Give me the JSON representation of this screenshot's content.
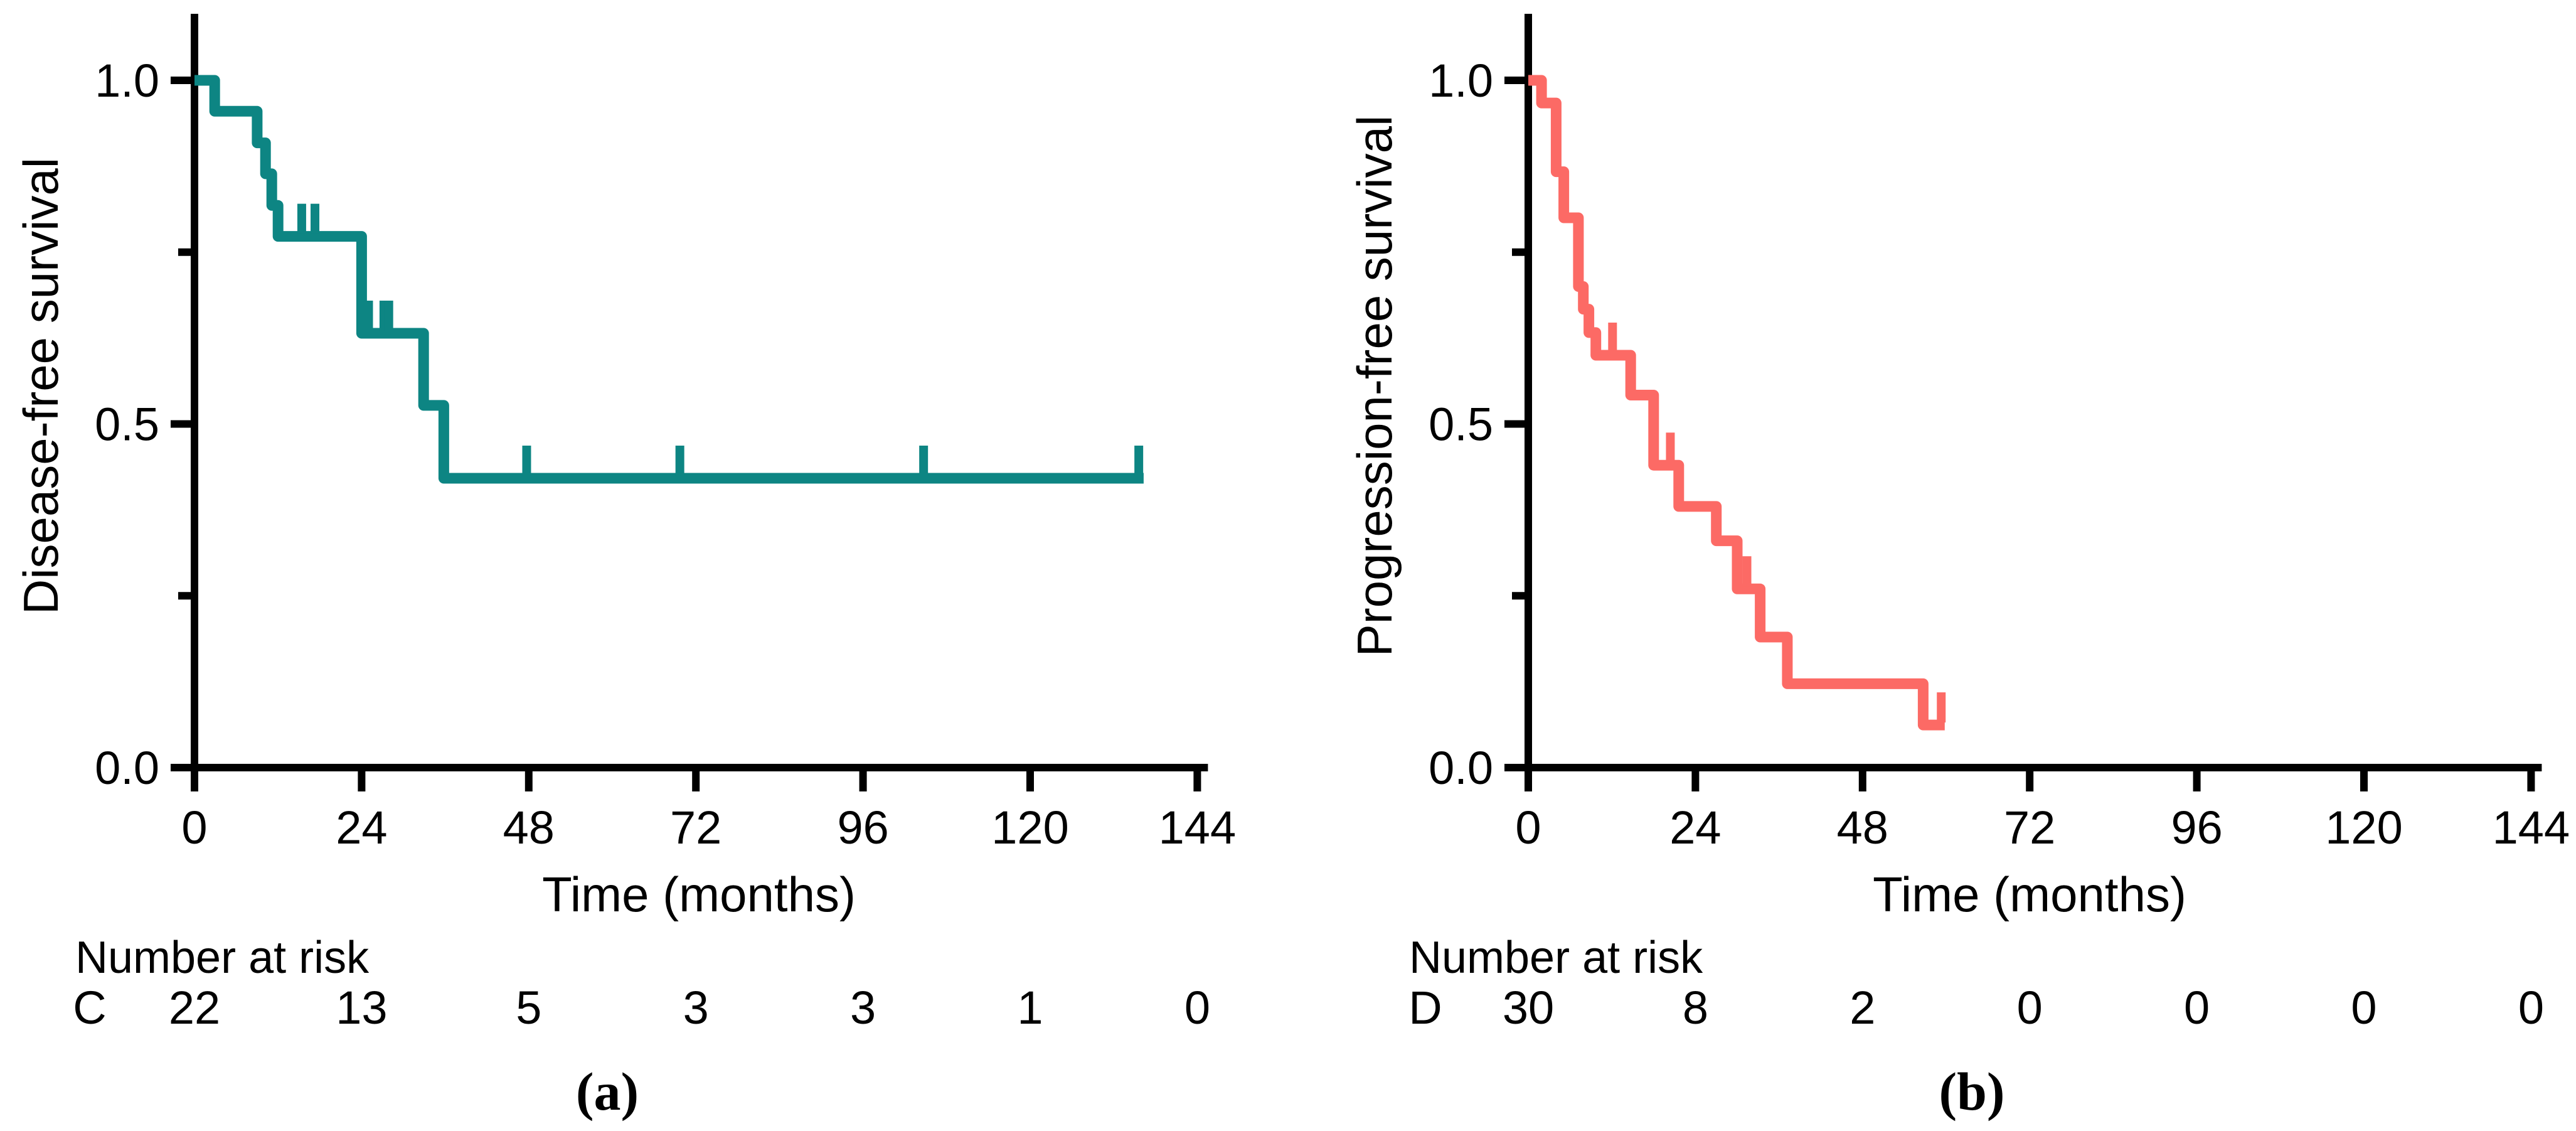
{
  "figure": {
    "background": "#ffffff",
    "text_color": "#000000",
    "axis_color": "#000000"
  },
  "chart_data": [
    {
      "type": "line",
      "subtype": "kaplan-meier-step",
      "panel_id": "a",
      "caption": "(a)",
      "ylabel": "Disease-free survival",
      "xlabel": "Time (months)",
      "color": "#0d8583",
      "xlim": [
        0,
        144
      ],
      "ylim": [
        0.0,
        1.0
      ],
      "x_tick_labels": [
        "0",
        "24",
        "48",
        "72",
        "96",
        "120",
        "144"
      ],
      "x_tick_values": [
        0,
        24,
        48,
        72,
        96,
        120,
        144
      ],
      "y_tick_labels": [
        "0.0",
        "0.5",
        "1.0"
      ],
      "y_tick_values": [
        0.0,
        0.5,
        1.0
      ],
      "y_minor_tick_values": [
        0.25,
        0.75
      ],
      "grid": false,
      "legend": "none",
      "km_steps": [
        [
          0,
          1.0
        ],
        [
          2.9,
          1.0
        ],
        [
          2.9,
          0.955
        ],
        [
          9.0,
          0.955
        ],
        [
          9.0,
          0.909
        ],
        [
          10.2,
          0.909
        ],
        [
          10.2,
          0.864
        ],
        [
          11.1,
          0.864
        ],
        [
          11.1,
          0.818
        ],
        [
          12.0,
          0.818
        ],
        [
          12.0,
          0.773
        ],
        [
          24.0,
          0.773
        ],
        [
          24.0,
          0.632
        ],
        [
          32.9,
          0.632
        ],
        [
          32.9,
          0.527
        ],
        [
          35.8,
          0.527
        ],
        [
          35.8,
          0.421
        ],
        [
          136.3,
          0.421
        ]
      ],
      "censor_marks": [
        [
          15.4,
          0.773
        ],
        [
          17.3,
          0.773
        ],
        [
          25.0,
          0.632
        ],
        [
          27.2,
          0.632
        ],
        [
          27.9,
          0.632
        ],
        [
          47.7,
          0.421
        ],
        [
          69.7,
          0.421
        ],
        [
          104.7,
          0.421
        ],
        [
          135.6,
          0.421
        ]
      ],
      "number_at_risk": {
        "header": "Number at risk",
        "group_label": "C",
        "values": [
          "22",
          "13",
          "5",
          "3",
          "3",
          "1",
          "0"
        ]
      }
    },
    {
      "type": "line",
      "subtype": "kaplan-meier-step",
      "panel_id": "b",
      "caption": "(b)",
      "ylabel": "Progression-free survival",
      "xlabel": "Time (months)",
      "color": "#fc6a65",
      "xlim": [
        0,
        144
      ],
      "ylim": [
        0.0,
        1.0
      ],
      "x_tick_labels": [
        "0",
        "24",
        "48",
        "72",
        "96",
        "120",
        "144"
      ],
      "x_tick_values": [
        0,
        24,
        48,
        72,
        96,
        120,
        144
      ],
      "y_tick_labels": [
        "0.0",
        "0.5",
        "1.0"
      ],
      "y_tick_values": [
        0.0,
        0.5,
        1.0
      ],
      "y_minor_tick_values": [
        0.25,
        0.75
      ],
      "grid": false,
      "legend": "none",
      "km_steps": [
        [
          0,
          1.0
        ],
        [
          1.9,
          1.0
        ],
        [
          1.9,
          0.967
        ],
        [
          4.0,
          0.967
        ],
        [
          4.0,
          0.867
        ],
        [
          5.1,
          0.867
        ],
        [
          5.1,
          0.8
        ],
        [
          7.2,
          0.8
        ],
        [
          7.2,
          0.7
        ],
        [
          7.9,
          0.7
        ],
        [
          7.9,
          0.667
        ],
        [
          8.7,
          0.667
        ],
        [
          8.7,
          0.633
        ],
        [
          9.7,
          0.633
        ],
        [
          9.7,
          0.6
        ],
        [
          14.7,
          0.6
        ],
        [
          14.7,
          0.542
        ],
        [
          18.0,
          0.542
        ],
        [
          18.0,
          0.44
        ],
        [
          21.6,
          0.44
        ],
        [
          21.6,
          0.38
        ],
        [
          27.0,
          0.38
        ],
        [
          27.0,
          0.33
        ],
        [
          30.0,
          0.33
        ],
        [
          30.0,
          0.26
        ],
        [
          33.3,
          0.26
        ],
        [
          33.3,
          0.19
        ],
        [
          37.2,
          0.19
        ],
        [
          37.2,
          0.122
        ],
        [
          56.7,
          0.122
        ],
        [
          56.7,
          0.062
        ],
        [
          59.8,
          0.062
        ]
      ],
      "censor_marks": [
        [
          12.1,
          0.6
        ],
        [
          20.4,
          0.44
        ],
        [
          31.4,
          0.26
        ],
        [
          59.3,
          0.062
        ]
      ],
      "number_at_risk": {
        "header": "Number at risk",
        "group_label": "D",
        "values": [
          "30",
          "8",
          "2",
          "0",
          "0",
          "0",
          "0"
        ]
      }
    }
  ]
}
